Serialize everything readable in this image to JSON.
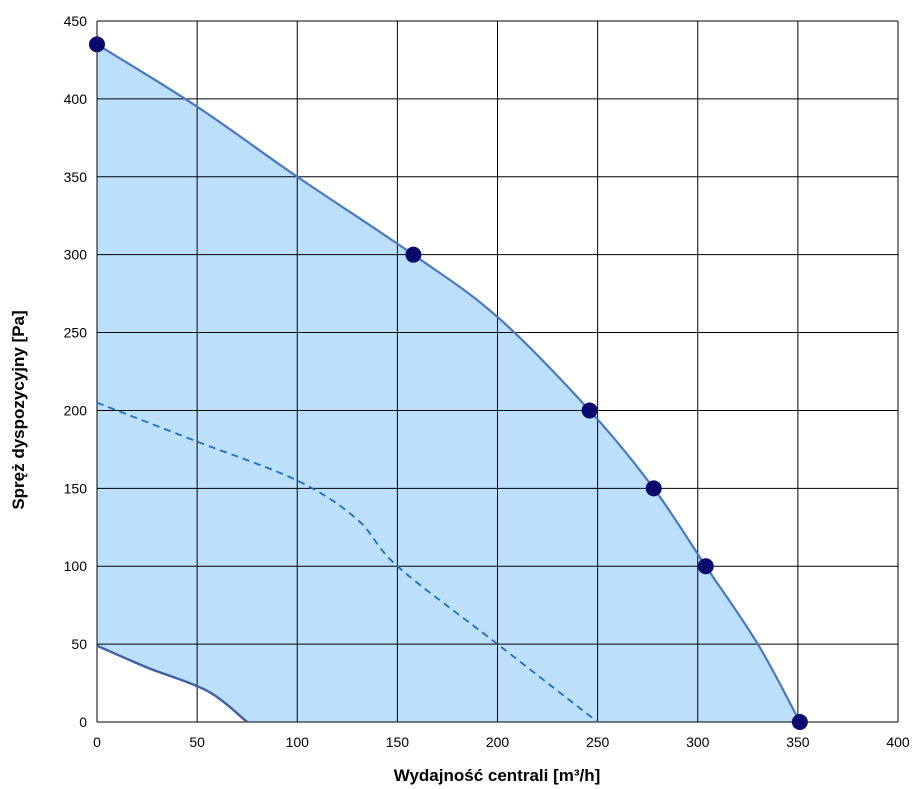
{
  "chart_data": {
    "type": "area",
    "title": "",
    "xlabel": "Wydajność centrali [m³/h]",
    "ylabel": "Spręż dyspozycyjny [Pa]",
    "xlim": [
      0,
      400
    ],
    "ylim": [
      0,
      450
    ],
    "xticks": [
      0,
      50,
      100,
      150,
      200,
      250,
      300,
      350,
      400
    ],
    "yticks": [
      0,
      50,
      100,
      150,
      200,
      250,
      300,
      350,
      400,
      450
    ],
    "grid": true,
    "colors": {
      "fill": "#bcdffb",
      "line": "#4a78c2",
      "marker": "#0a0a6e",
      "grid": "#000000"
    },
    "series": [
      {
        "kind": "max-curve",
        "x": [
          0,
          50,
          100,
          158,
          200,
          246,
          278,
          304,
          330,
          351
        ],
        "y": [
          435,
          395,
          350,
          300,
          260,
          200,
          150,
          100,
          50,
          0
        ]
      },
      {
        "kind": "markers",
        "x": [
          0,
          158,
          246,
          278,
          304,
          351
        ],
        "y": [
          435,
          300,
          200,
          150,
          100,
          0
        ]
      },
      {
        "kind": "min-curve",
        "x": [
          0,
          25,
          55,
          75
        ],
        "y": [
          49,
          35,
          20,
          0
        ]
      },
      {
        "kind": "dashed-curve",
        "x": [
          0,
          50,
          100,
          130,
          150,
          200,
          250
        ],
        "y": [
          205,
          180,
          155,
          130,
          100,
          50,
          0
        ]
      }
    ]
  }
}
